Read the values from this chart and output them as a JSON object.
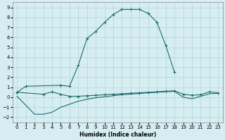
{
  "xlabel": "Humidex (Indice chaleur)",
  "bg_color": "#d6eef2",
  "grid_color": "#b0d4d8",
  "line_color": "#1a6b6b",
  "xlim": [
    -0.5,
    23.5
  ],
  "ylim": [
    -2.5,
    9.5
  ],
  "xticks": [
    0,
    1,
    2,
    3,
    4,
    5,
    6,
    7,
    8,
    9,
    10,
    11,
    12,
    13,
    14,
    15,
    16,
    17,
    18,
    19,
    20,
    21,
    22,
    23
  ],
  "yticks": [
    -2,
    -1,
    0,
    1,
    2,
    3,
    4,
    5,
    6,
    7,
    8,
    9
  ],
  "line1_x": [
    0,
    1,
    5,
    6,
    7,
    8,
    9,
    10,
    11,
    12,
    13,
    14,
    15,
    16,
    17,
    18
  ],
  "line1_y": [
    0.5,
    1.1,
    1.2,
    1.1,
    3.2,
    5.9,
    6.6,
    7.5,
    8.3,
    8.8,
    8.8,
    8.8,
    8.4,
    7.5,
    5.2,
    2.5
  ],
  "line2_x": [
    0,
    3,
    4,
    5,
    6,
    7,
    8,
    9,
    10,
    11,
    12,
    13,
    14,
    15,
    16,
    17,
    18,
    19,
    20,
    21,
    22,
    23
  ],
  "line2_y": [
    0.5,
    0.3,
    0.55,
    0.3,
    0.1,
    0.1,
    0.15,
    0.2,
    0.25,
    0.3,
    0.35,
    0.4,
    0.45,
    0.5,
    0.55,
    0.6,
    0.65,
    0.3,
    0.2,
    0.25,
    0.55,
    0.45
  ],
  "line3_x": [
    0,
    2,
    3,
    4,
    5,
    6,
    7,
    8,
    9,
    10,
    11,
    12,
    13,
    14,
    15,
    16,
    17,
    18,
    19,
    20,
    21,
    22,
    23
  ],
  "line3_y": [
    0.1,
    -1.7,
    -1.7,
    -1.5,
    -1.0,
    -0.7,
    -0.4,
    -0.2,
    -0.05,
    0.05,
    0.15,
    0.25,
    0.32,
    0.38,
    0.44,
    0.5,
    0.55,
    0.6,
    0.0,
    -0.15,
    0.1,
    0.35,
    0.4
  ]
}
